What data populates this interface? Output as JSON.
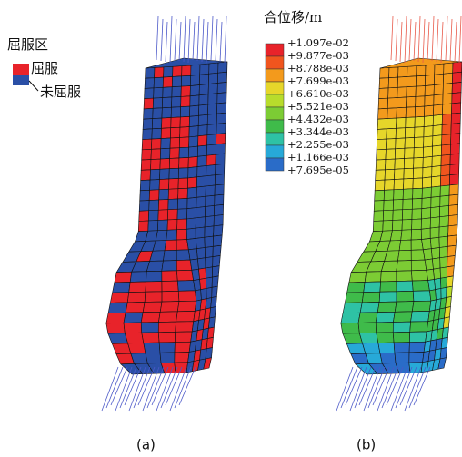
{
  "panel_a": {
    "legend": {
      "title": "屈服区",
      "entries": [
        "屈服",
        "未屈服"
      ]
    },
    "caption": "(a)"
  },
  "panel_b": {
    "legend": {
      "title": "合位移/m",
      "labels": [
        "+1.097e-02",
        "+9.877e-03",
        "+8.788e-03",
        "+7.699e-03",
        "+6.610e-03",
        "+5.521e-03",
        "+4.432e-03",
        "+3.344e-03",
        "+2.255e-03",
        "+1.166e-03",
        "+7.695e-05"
      ]
    },
    "caption": "(b)"
  }
}
